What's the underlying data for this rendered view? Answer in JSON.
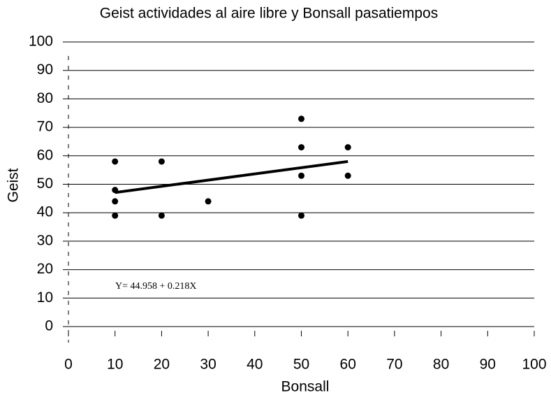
{
  "chart_data": {
    "type": "scatter",
    "title": "Geist actividades al aire libre y Bonsall pasatiempos",
    "xlabel": "Bonsall",
    "ylabel": "Geist",
    "x": [
      10,
      10,
      10,
      10,
      20,
      20,
      30,
      50,
      50,
      50,
      50,
      60,
      60
    ],
    "values": [
      58,
      48,
      44,
      39,
      58,
      39,
      44,
      73,
      63,
      53,
      39,
      63,
      53
    ],
    "color": "#000000",
    "trendline": {
      "x": [
        10,
        60
      ],
      "values": [
        47.1,
        58.0
      ],
      "color": "#000000"
    },
    "annotation": "Y= 44.958 + 0.218X",
    "xlim": [
      0,
      100
    ],
    "xticks": [
      0,
      10,
      20,
      30,
      40,
      50,
      60,
      70,
      80,
      90,
      100
    ],
    "ylim": [
      0,
      100
    ],
    "yticks": [
      0,
      10,
      20,
      30,
      40,
      50,
      60,
      70,
      80,
      90,
      100
    ],
    "grid": true
  }
}
